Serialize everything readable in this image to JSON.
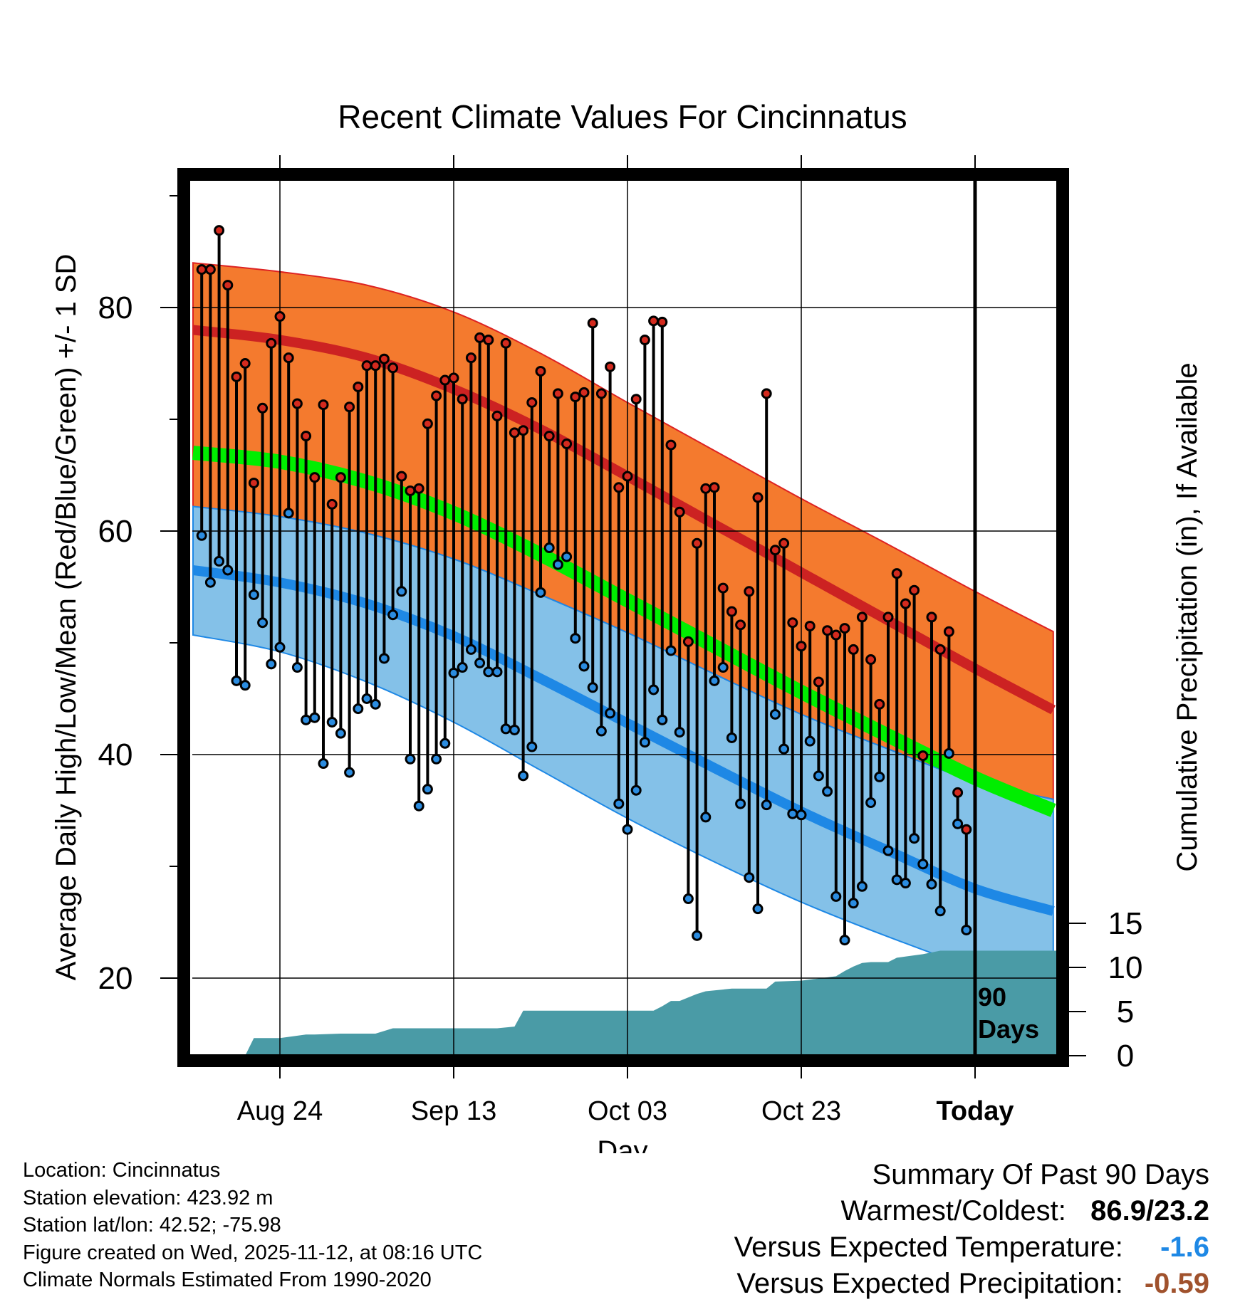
{
  "chart_data": {
    "type": "line",
    "title": "Recent Climate Values For Cincinnatus",
    "xlabel": "Day",
    "ylabel_left": "Average Daily High/Low/Mean (Red/Blue/Green) +/- 1 SD",
    "ylabel_right": "Cumulative Precipitation (in), If Available",
    "xlim_days": [
      -90,
      10
    ],
    "ylim_temp": [
      13.5,
      92
    ],
    "ylim_precip": [
      0,
      29.5
    ],
    "x_ticks": [
      {
        "day": -80,
        "label": "Aug 24"
      },
      {
        "day": -60,
        "label": "Sep 13"
      },
      {
        "day": -40,
        "label": "Oct 03"
      },
      {
        "day": -20,
        "label": "Oct 23"
      },
      {
        "day": 0,
        "label": "Today"
      }
    ],
    "y_ticks_left": [
      20,
      40,
      60,
      80
    ],
    "y_ticks_right": [
      0,
      5,
      10,
      15
    ],
    "marker_label": "90\nDays",
    "normal_high": {
      "days": [
        -90,
        -80,
        -70,
        -60,
        -50,
        -40,
        -30,
        -20,
        -10,
        0,
        9
      ],
      "mean": [
        78,
        77.1,
        75.5,
        72.7,
        69.1,
        64.9,
        60.6,
        56.3,
        52,
        47.7,
        44
      ],
      "sd_upper": [
        84,
        83.2,
        82,
        79.6,
        75.9,
        71.5,
        67.2,
        62.9,
        58.8,
        54.6,
        51
      ]
    },
    "normal_low": {
      "days": [
        -90,
        -80,
        -70,
        -60,
        -50,
        -40,
        -30,
        -20,
        -10,
        0,
        9
      ],
      "mean": [
        56.5,
        55.4,
        53.5,
        50.6,
        46.8,
        42.8,
        38.8,
        34.9,
        31.4,
        28,
        26
      ],
      "sd_lower": [
        50.7,
        49.2,
        46.5,
        42.9,
        38.6,
        34.3,
        30.4,
        26.8,
        23.7,
        20.9,
        19
      ],
      "sd_upper": [
        62.2,
        61.3,
        59.8,
        57.5,
        54.3,
        50.9,
        47.2,
        43.6,
        40.5,
        37.6,
        36
      ]
    },
    "normal_mean": {
      "days": [
        -90,
        -80,
        -70,
        -60,
        -50,
        -40,
        -30,
        -20,
        -10,
        0,
        9
      ],
      "values": [
        67,
        66.2,
        64.4,
        61.6,
        57.9,
        53.8,
        49.7,
        45.6,
        41.7,
        37.9,
        35
      ]
    },
    "daily_highs": [
      83.4,
      83.4,
      86.9,
      82.0,
      73.8,
      75.0,
      64.3,
      71.0,
      76.8,
      79.2,
      75.5,
      71.4,
      68.5,
      64.8,
      71.3,
      62.4,
      64.8,
      71.1,
      72.9,
      74.8,
      74.8,
      75.4,
      74.6,
      64.9,
      63.6,
      63.8,
      69.6,
      72.1,
      73.5,
      73.7,
      71.8,
      75.5,
      77.3,
      77.1,
      70.3,
      76.8,
      68.8,
      69.0,
      71.5,
      74.3,
      68.5,
      72.3,
      67.8,
      72.0,
      72.4,
      78.6,
      72.3,
      74.7,
      63.9,
      64.9,
      71.8,
      77.1,
      78.8,
      78.7,
      67.7,
      61.7,
      50.1,
      58.9,
      63.8,
      63.9,
      54.9,
      52.8,
      51.6,
      54.6,
      63.0,
      72.3,
      58.3,
      58.9,
      51.8,
      49.7,
      51.5,
      46.5,
      51.1,
      50.7,
      51.3,
      49.4,
      52.3,
      48.5,
      44.5,
      52.3,
      56.2,
      53.5,
      54.7,
      39.9,
      52.3,
      49.4,
      51.0,
      36.6,
      33.3
    ],
    "daily_lows": [
      59.6,
      55.4,
      57.3,
      56.5,
      46.6,
      46.2,
      54.3,
      51.8,
      48.1,
      49.6,
      61.6,
      47.8,
      43.1,
      43.3,
      39.2,
      42.9,
      41.9,
      38.4,
      44.1,
      45.0,
      44.5,
      48.6,
      52.5,
      54.6,
      39.6,
      35.4,
      36.9,
      39.6,
      41.0,
      47.3,
      47.8,
      49.4,
      48.2,
      47.4,
      47.4,
      42.3,
      42.2,
      38.1,
      40.7,
      54.5,
      58.5,
      57.0,
      57.7,
      50.4,
      47.9,
      46.0,
      42.1,
      43.7,
      35.6,
      33.3,
      36.8,
      41.1,
      45.8,
      43.1,
      49.3,
      42.0,
      27.1,
      23.8,
      34.4,
      46.6,
      47.8,
      41.5,
      35.6,
      29.0,
      26.2,
      35.5,
      43.6,
      40.5,
      34.7,
      34.6,
      41.2,
      38.1,
      36.7,
      27.3,
      23.4,
      26.7,
      28.2,
      35.7,
      38.0,
      31.4,
      28.8,
      28.5,
      32.5,
      30.2,
      28.4,
      26.0,
      40.1,
      33.8,
      24.3,
      23.2
    ],
    "precip_cumulative": {
      "days": [
        -90,
        -84,
        -83,
        -80,
        -77,
        -76,
        -73,
        -69,
        -68,
        -67,
        -65,
        -60,
        -55,
        -53,
        -52,
        -45,
        -43,
        -40,
        -37,
        -36,
        -35,
        -34,
        -32,
        -31,
        -28,
        -24,
        -23,
        -20,
        -16,
        -15,
        -14,
        -13,
        -12,
        -11,
        -10,
        -9,
        -6,
        -4,
        -3,
        9
      ],
      "values": [
        0,
        0,
        2.0,
        2.0,
        2.4,
        2.4,
        2.5,
        2.5,
        2.8,
        3.1,
        3.1,
        3.1,
        3.1,
        3.3,
        5.1,
        5.1,
        5.1,
        5.1,
        5.1,
        5.6,
        6.2,
        6.2,
        7.0,
        7.3,
        7.6,
        7.6,
        8.4,
        8.5,
        9.0,
        9.6,
        10.1,
        10.5,
        10.6,
        10.6,
        10.6,
        11.1,
        11.5,
        11.9,
        11.9,
        11.9
      ]
    },
    "colors": {
      "high_band": "#f47a2e",
      "high_line": "#cc2222",
      "low_band": "#84c1e8",
      "low_line": "#1e88e5",
      "mean_line": "#00ee00",
      "precip": "#4a9ba6",
      "high_marker": "#d42a1e",
      "low_marker": "#2b8ce0"
    }
  },
  "footer": {
    "location": "Location: Cincinnatus",
    "elevation": "Station elevation: 423.92 m",
    "latlon": "Station lat/lon: 42.52; -75.98",
    "created": "Figure created on Wed, 2025-11-12, at 08:16 UTC",
    "normals": "Climate Normals Estimated From 1990-2020"
  },
  "summary": {
    "title": "Summary Of Past 90 Days",
    "warmest_label": "Warmest/Coldest:",
    "warmest_value": "86.9/23.2",
    "temp_label": "Versus Expected Temperature:",
    "temp_value": "-1.6",
    "precip_label": "Versus Expected Precipitation:",
    "precip_value": "-0.59"
  }
}
